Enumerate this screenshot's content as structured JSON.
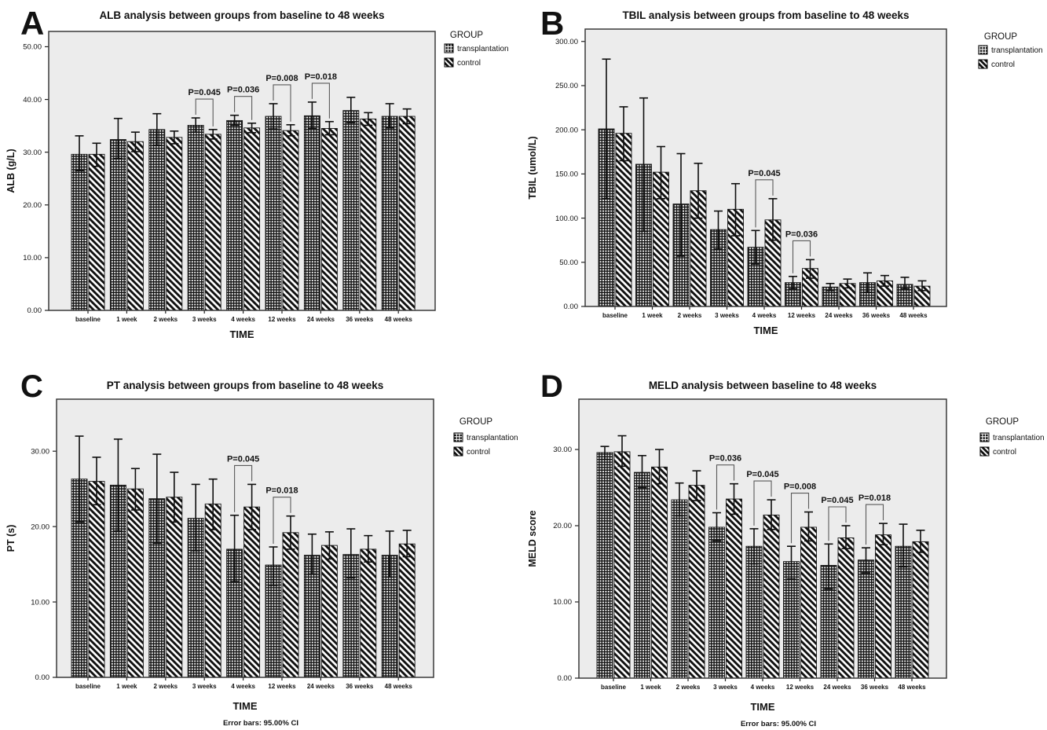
{
  "figure": {
    "legend": {
      "title": "GROUP",
      "items": [
        {
          "label": "transplantation",
          "pattern": "grid"
        },
        {
          "label": "control",
          "pattern": "diagonal"
        }
      ]
    },
    "footnote": "Error bars: 95.00% CI",
    "colors": {
      "plot_background": "#ececec",
      "plot_border": "#3a3a3a",
      "bar_ink": "#141414",
      "bracket": "#5a5a5a"
    }
  },
  "chart_data": [
    {
      "id": "A",
      "panel_letter": "A",
      "type": "bar",
      "title": "ALB analysis between groups from baseline to 48 weeks",
      "xlabel": "TIME",
      "ylabel": "ALB (g/L)",
      "ylim": [
        0,
        52.9
      ],
      "yticks": [
        0,
        10,
        20,
        30,
        40,
        50
      ],
      "ytick_labels": [
        "0.00",
        "10.00",
        "20.00",
        "30.00",
        "40.00",
        "50.00"
      ],
      "categories": [
        "baseline",
        "1 week",
        "2 weeks",
        "3 weeks",
        "4 weeks",
        "12 weeks",
        "24 weeks",
        "36 weeks",
        "48 weeks"
      ],
      "series": [
        {
          "name": "transplantation",
          "values": [
            29.6,
            32.4,
            34.3,
            35.1,
            36.0,
            36.8,
            36.9,
            37.9,
            36.8
          ],
          "ci_low": [
            26.5,
            28.8,
            31.3,
            33.8,
            35.1,
            34.4,
            34.5,
            35.6,
            34.6
          ],
          "ci_high": [
            33.1,
            36.4,
            37.3,
            36.5,
            37.0,
            39.2,
            39.5,
            40.4,
            39.2
          ]
        },
        {
          "name": "control",
          "values": [
            29.6,
            32.0,
            32.8,
            33.4,
            34.6,
            34.1,
            34.5,
            36.3,
            36.8
          ],
          "ci_low": [
            27.3,
            30.1,
            31.6,
            32.5,
            33.7,
            33.1,
            33.3,
            35.1,
            35.4
          ],
          "ci_high": [
            31.7,
            33.8,
            34.0,
            34.3,
            35.5,
            35.2,
            35.8,
            37.5,
            38.2
          ]
        }
      ],
      "significance": [
        {
          "category": "3 weeks",
          "label": "P=0.045"
        },
        {
          "category": "4 weeks",
          "label": "P=0.036"
        },
        {
          "category": "12 weeks",
          "label": "P=0.008"
        },
        {
          "category": "24 weeks",
          "label": "P=0.018"
        }
      ],
      "footnote": false
    },
    {
      "id": "B",
      "panel_letter": "B",
      "type": "bar",
      "title": "TBIL analysis between groups from baseline to 48 weeks",
      "xlabel": "TIME",
      "ylabel": "TBIL (umol/L)",
      "ylim": [
        0,
        314
      ],
      "yticks": [
        0,
        50,
        100,
        150,
        200,
        250,
        300
      ],
      "ytick_labels": [
        "0.00",
        "50.00",
        "100.00",
        "150.00",
        "200.00",
        "250.00",
        "300.00"
      ],
      "categories": [
        "baseline",
        "1 week",
        "2 weeks",
        "3 weeks",
        "4 weeks",
        "12 weeks",
        "24 weeks",
        "36 weeks",
        "48 weeks"
      ],
      "series": [
        {
          "name": "transplantation",
          "values": [
            201,
            161,
            116,
            87,
            67,
            27,
            22,
            27,
            25
          ],
          "ci_low": [
            122,
            85,
            57,
            65,
            48,
            20,
            18,
            16,
            20
          ],
          "ci_high": [
            280,
            236,
            173,
            108,
            86,
            34,
            26,
            38,
            33
          ]
        },
        {
          "name": "control",
          "values": [
            196,
            152,
            131,
            110,
            98,
            43,
            26,
            29,
            23
          ],
          "ci_low": [
            165,
            122,
            100,
            80,
            75,
            32,
            21,
            23,
            18
          ],
          "ci_high": [
            226,
            181,
            162,
            139,
            122,
            53,
            31,
            35,
            29
          ]
        }
      ],
      "significance": [
        {
          "category": "4 weeks",
          "label": "P=0.045"
        },
        {
          "category": "12 weeks",
          "label": "P=0.036"
        }
      ],
      "footnote": false
    },
    {
      "id": "C",
      "panel_letter": "C",
      "type": "bar",
      "title": "PT analysis between groups from baseline to 48 weeks",
      "xlabel": "TIME",
      "ylabel": "PT (s)",
      "ylim": [
        0,
        36.9
      ],
      "yticks": [
        0,
        10,
        20,
        30
      ],
      "ytick_labels": [
        "0.00",
        "10.00",
        "20.00",
        "30.00"
      ],
      "categories": [
        "baseline",
        "1 week",
        "2 weeks",
        "3 weeks",
        "4 weeks",
        "12 weeks",
        "24 weeks",
        "36 weeks",
        "48 weeks"
      ],
      "series": [
        {
          "name": "transplantation",
          "values": [
            26.3,
            25.5,
            23.7,
            21.1,
            17.0,
            14.9,
            16.2,
            16.3,
            16.2
          ],
          "ci_low": [
            20.6,
            19.4,
            17.8,
            16.8,
            12.7,
            12.2,
            13.7,
            13.2,
            13.3
          ],
          "ci_high": [
            32.0,
            31.6,
            29.6,
            25.6,
            21.5,
            17.3,
            19.0,
            19.7,
            19.4
          ]
        },
        {
          "name": "control",
          "values": [
            26.0,
            25.0,
            23.9,
            23.0,
            22.6,
            19.2,
            17.5,
            17.0,
            17.7
          ],
          "ci_low": [
            22.9,
            22.2,
            20.6,
            19.6,
            19.6,
            17.0,
            15.7,
            15.3,
            16.0
          ],
          "ci_high": [
            29.2,
            27.7,
            27.2,
            26.3,
            25.6,
            21.4,
            19.3,
            18.8,
            19.5
          ]
        }
      ],
      "significance": [
        {
          "category": "4 weeks",
          "label": "P=0.045"
        },
        {
          "category": "12 weeks",
          "label": "P=0.018"
        }
      ],
      "footnote": true
    },
    {
      "id": "D",
      "panel_letter": "D",
      "type": "bar",
      "title": "MELD analysis between baseline to 48 weeks",
      "xlabel": "TIME",
      "ylabel": "MELD score",
      "ylim": [
        0,
        36.6
      ],
      "yticks": [
        0,
        10,
        20,
        30
      ],
      "ytick_labels": [
        "0.00",
        "10.00",
        "20.00",
        "30.00"
      ],
      "categories": [
        "baseline",
        "1 week",
        "2 weeks",
        "3 weeks",
        "4 weeks",
        "12 weeks",
        "24 weeks",
        "36 weeks",
        "48 weeks"
      ],
      "series": [
        {
          "name": "transplantation",
          "values": [
            29.6,
            27.0,
            23.4,
            19.8,
            17.3,
            15.3,
            14.8,
            15.5,
            17.3
          ],
          "ci_low": [
            28.7,
            25.0,
            21.3,
            18.0,
            15.0,
            13.0,
            11.7,
            13.8,
            14.6
          ],
          "ci_high": [
            30.4,
            29.2,
            25.6,
            21.7,
            19.6,
            17.3,
            17.6,
            17.1,
            20.2
          ]
        },
        {
          "name": "control",
          "values": [
            29.7,
            27.7,
            25.3,
            23.5,
            21.4,
            19.8,
            18.4,
            18.8,
            17.9
          ],
          "ci_low": [
            27.8,
            25.5,
            23.3,
            21.5,
            19.5,
            18.0,
            17.0,
            17.5,
            16.5
          ],
          "ci_high": [
            31.8,
            30.0,
            27.2,
            25.5,
            23.4,
            21.8,
            20.0,
            20.3,
            19.4
          ]
        }
      ],
      "significance": [
        {
          "category": "3 weeks",
          "label": "P=0.036"
        },
        {
          "category": "4 weeks",
          "label": "P=0.045"
        },
        {
          "category": "12 weeks",
          "label": "P=0.008"
        },
        {
          "category": "24 weeks",
          "label": "P=0.045"
        },
        {
          "category": "36 weeks",
          "label": "P=0.018"
        }
      ],
      "footnote": true
    }
  ]
}
